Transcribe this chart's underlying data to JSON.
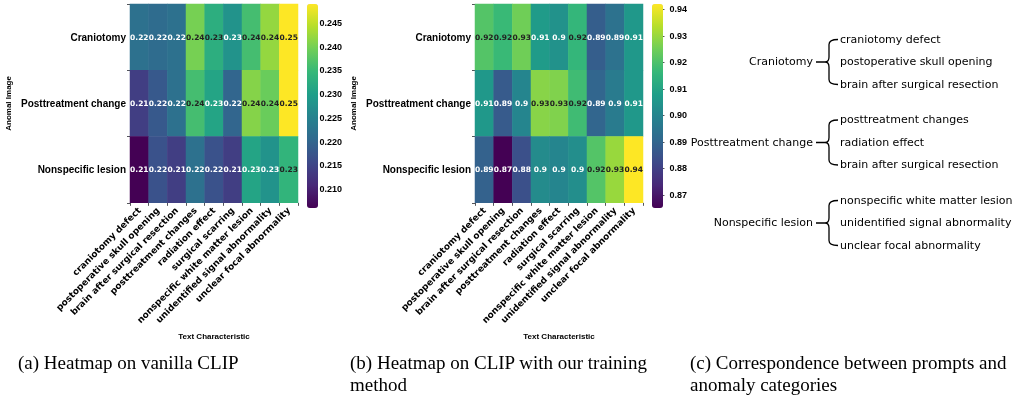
{
  "chart_data": [
    {
      "type": "heatmap",
      "title": "(a) Heatmap on vanilla CLIP",
      "xlabel": "Text Characteristic",
      "ylabel": "Anomal Image",
      "categories": [
        "craniotomy defect",
        "postoperative skull opening",
        "brain after surgical resection",
        "posttreatment changes",
        "radiation effect",
        "surgical scarring",
        "nonspecific white matter lesion",
        "unidentified signal abnormality",
        "unclear focal abnormality"
      ],
      "y_categories": [
        "Craniotomy",
        "Posttreatment change",
        "Nonspecific lesion"
      ],
      "cells": [
        [
          0.222,
          0.221,
          0.222,
          0.24,
          0.233,
          0.228,
          0.236,
          0.242,
          0.249
        ],
        [
          0.214,
          0.218,
          0.222,
          0.236,
          0.231,
          0.22,
          0.241,
          0.239,
          0.249
        ],
        [
          0.206,
          0.217,
          0.214,
          0.222,
          0.217,
          0.214,
          0.231,
          0.228,
          0.234
        ]
      ],
      "cell_labels": [
        [
          "0.22",
          "0.22",
          "0.22",
          "0.24",
          "0.23",
          "0.23",
          "0.24",
          "0.24",
          "0.25"
        ],
        [
          "0.21",
          "0.22",
          "0.22",
          "0.24",
          "0.23",
          "0.22",
          "0.24",
          "0.24",
          "0.25"
        ],
        [
          "0.21",
          "0.22",
          "0.21",
          "0.22",
          "0.22",
          "0.21",
          "0.23",
          "0.23",
          "0.23"
        ]
      ],
      "clim": [
        0.206,
        0.249
      ],
      "cticks": [
        {
          "value": 0.21,
          "label": "0.210"
        },
        0.215,
        {
          "value": 0.22,
          "label": "0.220"
        },
        0.225,
        {
          "value": 0.23,
          "label": "0.230"
        },
        0.235,
        {
          "value": 0.24,
          "label": "0.240"
        },
        0.245
      ]
    },
    {
      "type": "heatmap",
      "title": "(b) Heatmap on CLIP with our training method",
      "xlabel": "Text Characteristic",
      "ylabel": "Anomal Image",
      "categories": [
        "craniotomy defect",
        "postoperative skull opening",
        "brain after surgical resection",
        "posttreatment changes",
        "radiation effect",
        "surgical scarring",
        "nonspecific white matter lesion",
        "unidentified signal abnormality",
        "unclear focal abnormality"
      ],
      "y_categories": [
        "Craniotomy",
        "Posttreatment change",
        "Nonspecific lesion"
      ],
      "cells": [
        [
          0.921,
          0.917,
          0.925,
          0.907,
          0.904,
          0.916,
          0.888,
          0.894,
          0.906
        ],
        [
          0.906,
          0.887,
          0.9,
          0.928,
          0.927,
          0.918,
          0.89,
          0.897,
          0.906
        ],
        [
          0.889,
          0.865,
          0.884,
          0.902,
          0.9,
          0.903,
          0.921,
          0.93,
          0.942
        ]
      ],
      "cell_labels": [
        [
          "0.92",
          "0.92",
          "0.93",
          "0.91",
          "0.9",
          "0.92",
          "0.89",
          "0.89",
          "0.91"
        ],
        [
          "0.91",
          "0.89",
          "0.9",
          "0.93",
          "0.93",
          "0.92",
          "0.89",
          "0.9",
          "0.91"
        ],
        [
          "0.89",
          "0.87",
          "0.88",
          "0.9",
          "0.9",
          "0.9",
          "0.92",
          "0.93",
          "0.94"
        ]
      ],
      "clim": [
        0.865,
        0.942
      ],
      "cticks": [
        0.87,
        0.88,
        0.89,
        {
          "value": 0.9,
          "label": "0.90"
        },
        0.91,
        0.92,
        0.93,
        0.94
      ]
    },
    {
      "type": "other",
      "title": "(c) Correspondence between prompts and anomaly categories",
      "categories": [
        "Craniotomy",
        "Posttreatment change",
        "Nonspecific lesion"
      ],
      "annotations": [
        "craniotomy defect",
        "postoperative skull opening",
        "brain after surgical resection",
        "posttreatment changes",
        "radiation effect",
        "brain after surgical resection",
        "nonspecific white matter lesion",
        "unidentified signal abnormality",
        "unclear focal abnormality"
      ]
    }
  ]
}
